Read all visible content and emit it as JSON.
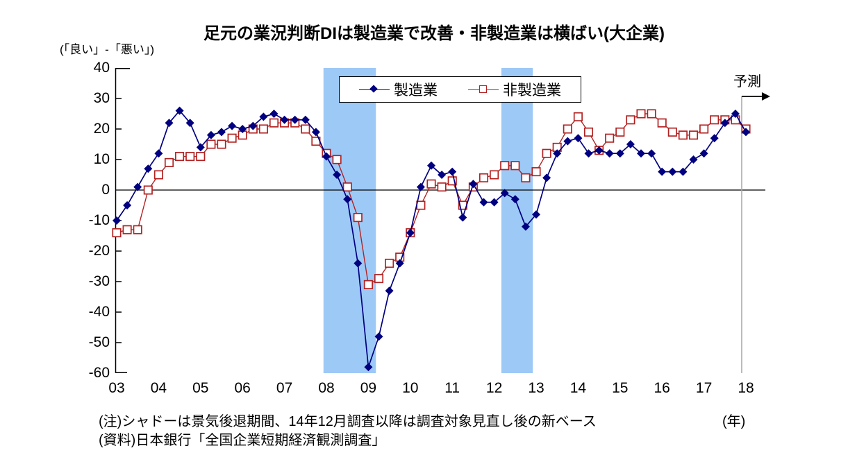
{
  "title": "足元の業況判断DIは製造業で改善・非製造業は横ばい(大企業)",
  "y_axis_unit": "(「良い」-「悪い」)",
  "x_axis_unit": "(年)",
  "forecast_label": "予測",
  "notes": [
    "(注)シャドーは景気後退期間、14年12月調査以降は調査対象見直し後の新ベース",
    "(資料)日本銀行「全国企業短期経済観測調査」"
  ],
  "colors": {
    "manufacturing": "#000080",
    "nonmanufacturing": "#b22222",
    "recession_band": "#9dc9f7",
    "forecast_divider": "#a8a8a8",
    "axis": "#000000"
  },
  "chart_data": {
    "type": "line",
    "title": "足元の業況判断DIは製造業で改善・非製造業は横ばい(大企業)",
    "ylabel": "(「良い」-「悪い」)",
    "xlabel": "(年)",
    "ylim": [
      -60,
      40
    ],
    "yticks": [
      40,
      30,
      20,
      10,
      0,
      -10,
      -20,
      -30,
      -40,
      -50,
      -60
    ],
    "categories": [
      "03",
      "04",
      "05",
      "06",
      "07",
      "08",
      "09",
      "10",
      "11",
      "12",
      "13",
      "14",
      "15",
      "16",
      "17",
      "18"
    ],
    "x_frequency": "quarterly (Mar/Jun/Sep/Dec surveys), 2003Q1 to 2018Q1",
    "grid": false,
    "legend_position": "top-center",
    "series": [
      {
        "name": "製造業",
        "marker": "filled-diamond",
        "color": "#000080",
        "values": [
          -10,
          -5,
          1,
          7,
          12,
          22,
          26,
          22,
          14,
          18,
          19,
          21,
          20,
          21,
          24,
          25,
          23,
          23,
          23,
          19,
          11,
          5,
          -3,
          -24,
          -58,
          -48,
          -33,
          -24,
          -14,
          1,
          8,
          5,
          6,
          -9,
          2,
          -4,
          -4,
          -1,
          -3,
          -12,
          -8,
          4,
          12,
          16,
          17,
          12,
          13,
          12,
          12,
          15,
          12,
          12,
          6,
          6,
          6,
          10,
          12,
          17,
          22,
          25,
          19
        ]
      },
      {
        "name": "非製造業",
        "marker": "open-square",
        "color": "#b22222",
        "values": [
          -14,
          -13,
          -13,
          0,
          5,
          9,
          11,
          11,
          11,
          15,
          15,
          17,
          18,
          20,
          20,
          22,
          22,
          22,
          20,
          16,
          12,
          10,
          1,
          -9,
          -31,
          -29,
          -24,
          -22,
          -14,
          -5,
          2,
          1,
          3,
          -5,
          1,
          4,
          5,
          8,
          8,
          4,
          6,
          12,
          14,
          20,
          24,
          19,
          13,
          17,
          19,
          23,
          25,
          25,
          22,
          19,
          18,
          18,
          20,
          23,
          23,
          23,
          20
        ]
      }
    ],
    "forecast_from_index": 60,
    "recession_bands_years": [
      [
        2007.93,
        2009.18
      ],
      [
        2012.17,
        2012.92
      ]
    ],
    "annotations": [
      {
        "text": "予測",
        "meaning": "forecast",
        "position": "top-right"
      }
    ]
  }
}
